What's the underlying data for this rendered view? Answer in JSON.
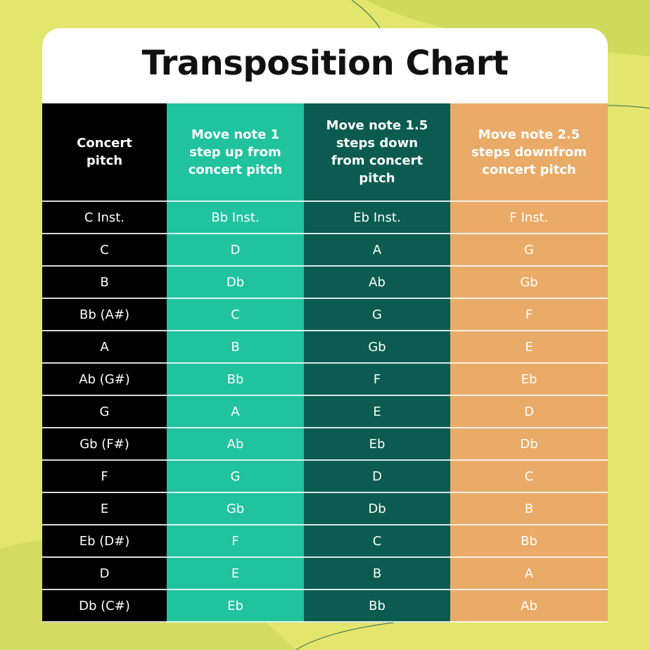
{
  "header": {
    "title": "Transposition Chart"
  },
  "table": {
    "headers": [
      "Concert pitch",
      "Move note 1 step up from concert pitch",
      "Move note 1.5 steps down from concert pitch",
      "Move note 2.5 steps downfrom concert pitch"
    ],
    "rows": [
      [
        "C Inst.",
        "Bb Inst.",
        "Eb Inst.",
        "F Inst."
      ],
      [
        "C",
        "D",
        "A",
        "G"
      ],
      [
        "B",
        "Db",
        "Ab",
        "Gb"
      ],
      [
        "Bb (A#)",
        "C",
        "G",
        "F"
      ],
      [
        "A",
        "B",
        "Gb",
        "E"
      ],
      [
        "Ab (G#)",
        "Bb",
        "F",
        "Eb"
      ],
      [
        "G",
        "A",
        "E",
        "D"
      ],
      [
        "Gb (F#)",
        "Ab",
        "Eb",
        "Db"
      ],
      [
        "F",
        "G",
        "D",
        "C"
      ],
      [
        "E",
        "Gb",
        "Db",
        "B"
      ],
      [
        "Eb (D#)",
        "F",
        "C",
        "Bb"
      ],
      [
        "D",
        "E",
        "B",
        "A"
      ],
      [
        "Db (C#)",
        "Eb",
        "Bb",
        "Ab"
      ]
    ]
  }
}
